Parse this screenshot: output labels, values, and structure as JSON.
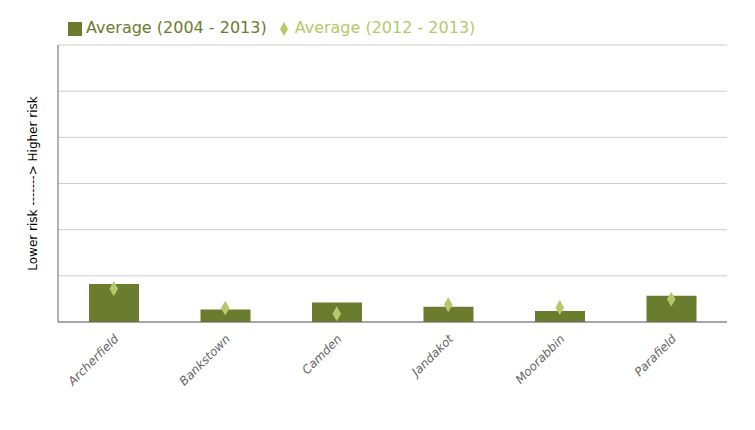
{
  "chart_data": {
    "type": "bar",
    "ylabel": "Lower risk ------->  Higher risk",
    "categories": [
      "Archerfield",
      "Bankstown",
      "Camden",
      "Jandakot",
      "Moorabbin",
      "Parafield"
    ],
    "series": [
      {
        "name": "Average (2004 - 2013)",
        "type": "bar",
        "color": "#6B7C2E",
        "values": [
          0.055,
          0.018,
          0.028,
          0.022,
          0.016,
          0.038
        ]
      },
      {
        "name": "Average (2012 - 2013)",
        "type": "scatter",
        "marker": "diamond",
        "color": "#B5C96A",
        "values": [
          0.048,
          0.02,
          0.012,
          0.025,
          0.021,
          0.033
        ]
      }
    ],
    "ylim": [
      0,
      0.4
    ],
    "yticks": [
      0,
      0.06666666666666667,
      0.13333333333333333,
      0.2,
      0.26666666666666666,
      0.3333333333333333,
      0.4
    ],
    "grid": true,
    "legend": "upper left",
    "tick_labels": "x"
  }
}
